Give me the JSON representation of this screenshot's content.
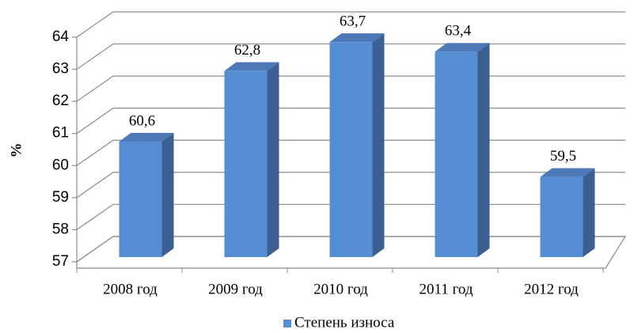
{
  "chart_data": {
    "type": "bar3d",
    "categories": [
      "2008 год",
      "2009 год",
      "2010 год",
      "2011 год",
      "2012 год"
    ],
    "series": [
      {
        "name": "Степень износа",
        "color": "#558ed5",
        "values": [
          60.6,
          62.8,
          63.7,
          63.4,
          59.5
        ],
        "value_labels": [
          "60,6",
          "62,8",
          "63,7",
          "63,4",
          "59,5"
        ]
      }
    ],
    "y_label": "%",
    "ylim": [
      57,
      64
    ],
    "yticks": [
      57,
      58,
      59,
      60,
      61,
      62,
      63,
      64
    ],
    "grid": true
  }
}
